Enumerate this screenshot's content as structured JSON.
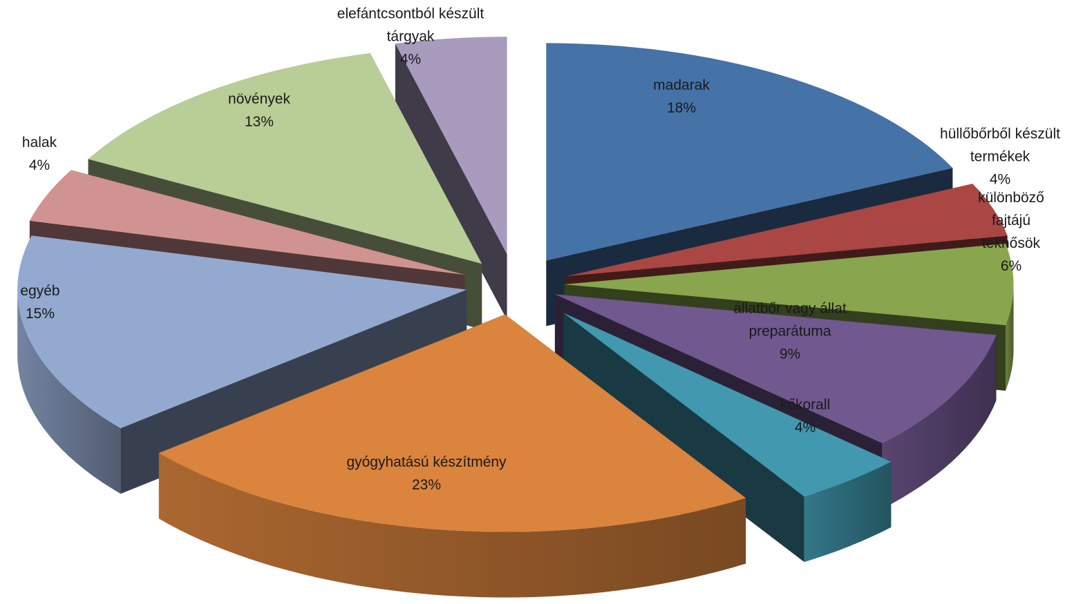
{
  "chart_data": {
    "type": "pie",
    "style": "3d-exploded",
    "title": "",
    "slices": [
      {
        "name": "madarak",
        "label_lines": [
          "madarak"
        ],
        "pct_label": "18%",
        "value": 18,
        "color": "#4572A7"
      },
      {
        "name": "hüllőbőrből készült termékek",
        "label_lines": [
          "hüllőbőrből készült",
          "termékek"
        ],
        "pct_label": "4%",
        "value": 4,
        "color": "#AA4643"
      },
      {
        "name": "különböző fajtájú teknősök",
        "label_lines": [
          "különböző",
          "fajtájú",
          "teknősök"
        ],
        "pct_label": "6%",
        "value": 6,
        "color": "#89A54E"
      },
      {
        "name": "állatbőr vagy állat preparátuma",
        "label_lines": [
          "állatbőr vagy állat",
          "preparátuma"
        ],
        "pct_label": "9%",
        "value": 9,
        "color": "#71588F"
      },
      {
        "name": "kőkorall",
        "label_lines": [
          "kőkorall"
        ],
        "pct_label": "4%",
        "value": 4,
        "color": "#4198AF"
      },
      {
        "name": "gyógyhatású készítmény",
        "label_lines": [
          "gyógyhatású készítmény"
        ],
        "pct_label": "23%",
        "value": 23,
        "color": "#DB843D"
      },
      {
        "name": "egyéb",
        "label_lines": [
          "egyéb"
        ],
        "pct_label": "15%",
        "value": 15,
        "color": "#93A9CF"
      },
      {
        "name": "halak",
        "label_lines": [
          "halak"
        ],
        "pct_label": "4%",
        "value": 4,
        "color": "#D19392"
      },
      {
        "name": "növények",
        "label_lines": [
          "növények"
        ],
        "pct_label": "13%",
        "value": 13,
        "color": "#B9CD96"
      },
      {
        "name": "elefántcsontból készült tárgyak",
        "label_lines": [
          "elefántcsontból készült",
          "tárgyak"
        ],
        "pct_label": "4%",
        "value": 4,
        "color": "#A99BBD"
      }
    ]
  }
}
